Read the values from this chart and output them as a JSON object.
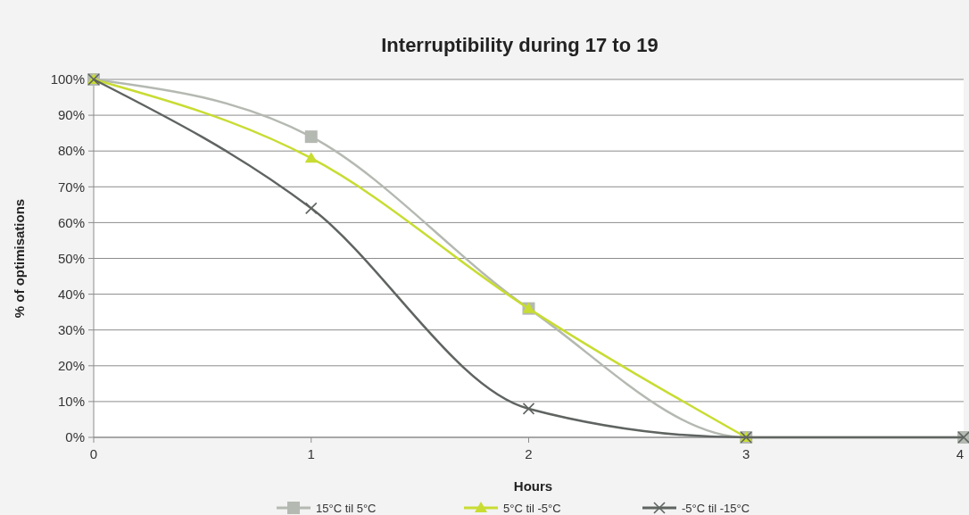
{
  "chart_data": {
    "type": "line",
    "title": "Interruptibility during 17 to 19",
    "xlabel": "Hours",
    "ylabel": "% of optimisations",
    "x": [
      0,
      1,
      2,
      3,
      4
    ],
    "xlim": [
      0,
      4
    ],
    "xticks": [
      0,
      1,
      2,
      3,
      4
    ],
    "ylim": [
      0,
      100
    ],
    "yticks": [
      {
        "value": 0,
        "label": "0%"
      },
      {
        "value": 10,
        "label": "10%"
      },
      {
        "value": 20,
        "label": "20%"
      },
      {
        "value": 30,
        "label": "30%"
      },
      {
        "value": 40,
        "label": "40%"
      },
      {
        "value": 50,
        "label": "50%"
      },
      {
        "value": 60,
        "label": "60%"
      },
      {
        "value": 70,
        "label": "70%"
      },
      {
        "value": 80,
        "label": "80%"
      },
      {
        "value": 90,
        "label": "90%"
      },
      {
        "value": 100,
        "label": "100%"
      }
    ],
    "grid": "y",
    "legend": "bottom",
    "series": [
      {
        "name": "15°C til 5°C",
        "color": "#b4b9b1",
        "marker": "square",
        "values": [
          100,
          84,
          36,
          0,
          0
        ]
      },
      {
        "name": "5°C til -5°C",
        "color": "#c8dc32",
        "marker": "triangle",
        "values": [
          100,
          78,
          36,
          0,
          null
        ]
      },
      {
        "name": "-5°C til -15°C",
        "color": "#5f6461",
        "marker": "cross",
        "values": [
          100,
          64,
          8,
          0,
          0
        ]
      }
    ]
  }
}
